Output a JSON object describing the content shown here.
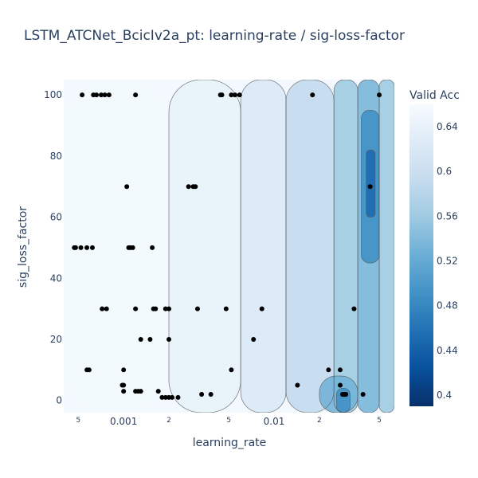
{
  "chart_data": {
    "type": "contour",
    "title": "LSTM_ATCNet_BcicIv2a_pt: learning-rate / sig-loss-factor",
    "xlabel": "learning_rate",
    "ylabel": "sig_loss_factor",
    "x_scale": "log",
    "xlim": [
      0.0004,
      0.063
    ],
    "ylim": [
      -4,
      105
    ],
    "x_ticks": [
      {
        "value": 0.0005,
        "label": "5",
        "minor": true
      },
      {
        "value": 0.001,
        "label": "0.001",
        "minor": false
      },
      {
        "value": 0.002,
        "label": "2",
        "minor": true
      },
      {
        "value": 0.005,
        "label": "5",
        "minor": true
      },
      {
        "value": 0.01,
        "label": "0.01",
        "minor": false
      },
      {
        "value": 0.02,
        "label": "2",
        "minor": true
      },
      {
        "value": 0.05,
        "label": "5",
        "minor": true
      }
    ],
    "y_ticks": [
      {
        "value": 0,
        "label": "0"
      },
      {
        "value": 20,
        "label": "20"
      },
      {
        "value": 40,
        "label": "40"
      },
      {
        "value": 60,
        "label": "60"
      },
      {
        "value": 80,
        "label": "80"
      },
      {
        "value": 100,
        "label": "100"
      }
    ],
    "colorbar": {
      "title": "Valid Acc",
      "range": [
        0.39,
        0.66
      ],
      "ticks": [
        {
          "value": 0.64,
          "label": "0.64"
        },
        {
          "value": 0.6,
          "label": "0.6"
        },
        {
          "value": 0.56,
          "label": "0.56"
        },
        {
          "value": 0.52,
          "label": "0.52"
        },
        {
          "value": 0.48,
          "label": "0.48"
        },
        {
          "value": 0.44,
          "label": "0.44"
        },
        {
          "value": 0.4,
          "label": "0.4"
        }
      ],
      "colors": [
        "#08306b",
        "#08519c",
        "#2171b5",
        "#4292c6",
        "#6baed6",
        "#9ecae1",
        "#c6dbef",
        "#deebf7",
        "#f7fbff"
      ]
    },
    "trials": [
      {
        "x": 0.00053,
        "y": 100
      },
      {
        "x": 0.00063,
        "y": 100
      },
      {
        "x": 0.00066,
        "y": 100
      },
      {
        "x": 0.00071,
        "y": 100
      },
      {
        "x": 0.00075,
        "y": 100
      },
      {
        "x": 0.0008,
        "y": 100
      },
      {
        "x": 0.0012,
        "y": 100
      },
      {
        "x": 0.0044,
        "y": 100
      },
      {
        "x": 0.0045,
        "y": 100
      },
      {
        "x": 0.0052,
        "y": 100
      },
      {
        "x": 0.0055,
        "y": 100
      },
      {
        "x": 0.0059,
        "y": 100
      },
      {
        "x": 0.018,
        "y": 100
      },
      {
        "x": 0.05,
        "y": 100
      },
      {
        "x": 0.00105,
        "y": 70
      },
      {
        "x": 0.0027,
        "y": 70
      },
      {
        "x": 0.0029,
        "y": 70
      },
      {
        "x": 0.003,
        "y": 70
      },
      {
        "x": 0.0435,
        "y": 70
      },
      {
        "x": 0.00047,
        "y": 50
      },
      {
        "x": 0.00048,
        "y": 50
      },
      {
        "x": 0.00052,
        "y": 50
      },
      {
        "x": 0.00057,
        "y": 50
      },
      {
        "x": 0.00062,
        "y": 50
      },
      {
        "x": 0.00108,
        "y": 50
      },
      {
        "x": 0.00111,
        "y": 50
      },
      {
        "x": 0.00115,
        "y": 50
      },
      {
        "x": 0.00155,
        "y": 50
      },
      {
        "x": 0.00072,
        "y": 30
      },
      {
        "x": 0.00077,
        "y": 30
      },
      {
        "x": 0.0012,
        "y": 30
      },
      {
        "x": 0.00158,
        "y": 30
      },
      {
        "x": 0.00163,
        "y": 30
      },
      {
        "x": 0.0019,
        "y": 30
      },
      {
        "x": 0.002,
        "y": 30
      },
      {
        "x": 0.0031,
        "y": 30
      },
      {
        "x": 0.0048,
        "y": 30
      },
      {
        "x": 0.0083,
        "y": 30
      },
      {
        "x": 0.034,
        "y": 30
      },
      {
        "x": 0.0013,
        "y": 20
      },
      {
        "x": 0.0015,
        "y": 20
      },
      {
        "x": 0.002,
        "y": 20
      },
      {
        "x": 0.0073,
        "y": 20
      },
      {
        "x": 0.00057,
        "y": 10
      },
      {
        "x": 0.00059,
        "y": 10
      },
      {
        "x": 0.001,
        "y": 10
      },
      {
        "x": 0.0052,
        "y": 10
      },
      {
        "x": 0.023,
        "y": 10
      },
      {
        "x": 0.0275,
        "y": 10
      },
      {
        "x": 0.00098,
        "y": 5
      },
      {
        "x": 0.001,
        "y": 5
      },
      {
        "x": 0.0143,
        "y": 5
      },
      {
        "x": 0.0275,
        "y": 5
      },
      {
        "x": 0.001,
        "y": 3
      },
      {
        "x": 0.0012,
        "y": 3
      },
      {
        "x": 0.00125,
        "y": 3
      },
      {
        "x": 0.0013,
        "y": 3
      },
      {
        "x": 0.0017,
        "y": 3
      },
      {
        "x": 0.0018,
        "y": 1
      },
      {
        "x": 0.0019,
        "y": 1
      },
      {
        "x": 0.002,
        "y": 1
      },
      {
        "x": 0.0021,
        "y": 1
      },
      {
        "x": 0.0023,
        "y": 1
      },
      {
        "x": 0.0033,
        "y": 2
      },
      {
        "x": 0.0038,
        "y": 2
      },
      {
        "x": 0.0285,
        "y": 2
      },
      {
        "x": 0.0293,
        "y": 2
      },
      {
        "x": 0.03,
        "y": 2
      },
      {
        "x": 0.039,
        "y": 2
      }
    ],
    "accuracy_regions": [
      {
        "x1": 0.0004,
        "x2": 0.002,
        "y1": -4,
        "y2": 105,
        "value": 0.655
      },
      {
        "x1": 0.002,
        "x2": 0.006,
        "y1": -4,
        "y2": 105,
        "value": 0.64
      },
      {
        "x1": 0.006,
        "x2": 0.012,
        "y1": -4,
        "y2": 105,
        "value": 0.62
      },
      {
        "x1": 0.012,
        "x2": 0.025,
        "y1": -4,
        "y2": 105,
        "value": 0.59
      },
      {
        "x1": 0.025,
        "x2": 0.036,
        "y1": -4,
        "y2": 105,
        "value": 0.56
      },
      {
        "x1": 0.036,
        "x2": 0.05,
        "y1": -4,
        "y2": 105,
        "value": 0.535
      },
      {
        "x1": 0.05,
        "x2": 0.063,
        "y1": -4,
        "y2": 105,
        "value": 0.56
      },
      {
        "x1": 0.038,
        "x2": 0.05,
        "y1": 45,
        "y2": 95,
        "value": 0.49
      },
      {
        "x1": 0.041,
        "x2": 0.047,
        "y1": 60,
        "y2": 82,
        "value": 0.45
      },
      {
        "x1": 0.02,
        "x2": 0.036,
        "y1": -4,
        "y2": 8,
        "value": 0.53
      },
      {
        "x1": 0.026,
        "x2": 0.032,
        "y1": -4,
        "y2": 4,
        "value": 0.49
      }
    ]
  }
}
